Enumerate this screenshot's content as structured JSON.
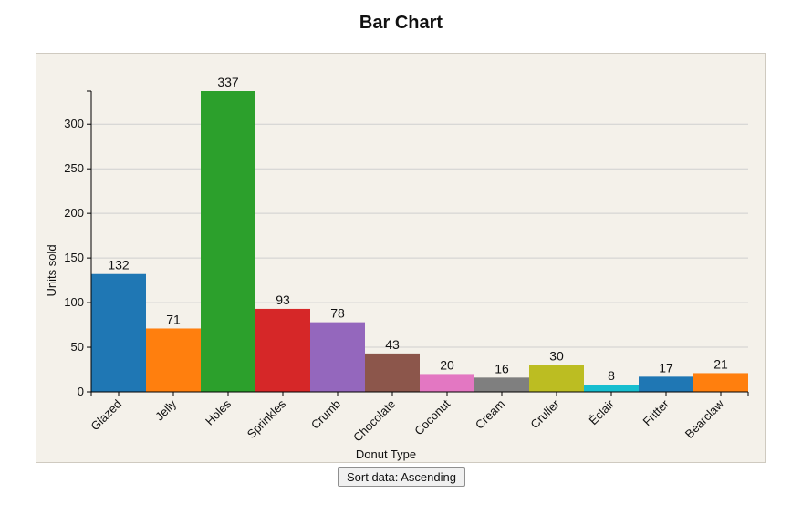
{
  "page": {
    "title": "Bar Chart"
  },
  "controls": {
    "sort_label": "Sort data: Ascending"
  },
  "chart_data": {
    "type": "bar",
    "title": "Bar Chart",
    "xlabel": "Donut Type",
    "ylabel": "Units sold",
    "categories": [
      "Glazed",
      "Jelly",
      "Holes",
      "Sprinkles",
      "Crumb",
      "Chocolate",
      "Coconut",
      "Cream",
      "Cruller",
      "Éclair",
      "Fritter",
      "Bearclaw"
    ],
    "values": [
      132,
      71,
      337,
      93,
      78,
      43,
      20,
      16,
      30,
      8,
      17,
      21
    ],
    "colors": [
      "#1f77b4",
      "#ff7f0e",
      "#2ca02c",
      "#d62728",
      "#9467bd",
      "#8c564b",
      "#e377c2",
      "#7f7f7f",
      "#bcbd22",
      "#17becf",
      "#1f77b4",
      "#ff7f0e"
    ],
    "yticks": [
      0,
      50,
      100,
      150,
      200,
      250,
      300
    ],
    "ylim": [
      0,
      337
    ],
    "grid": true,
    "legend": "none"
  }
}
